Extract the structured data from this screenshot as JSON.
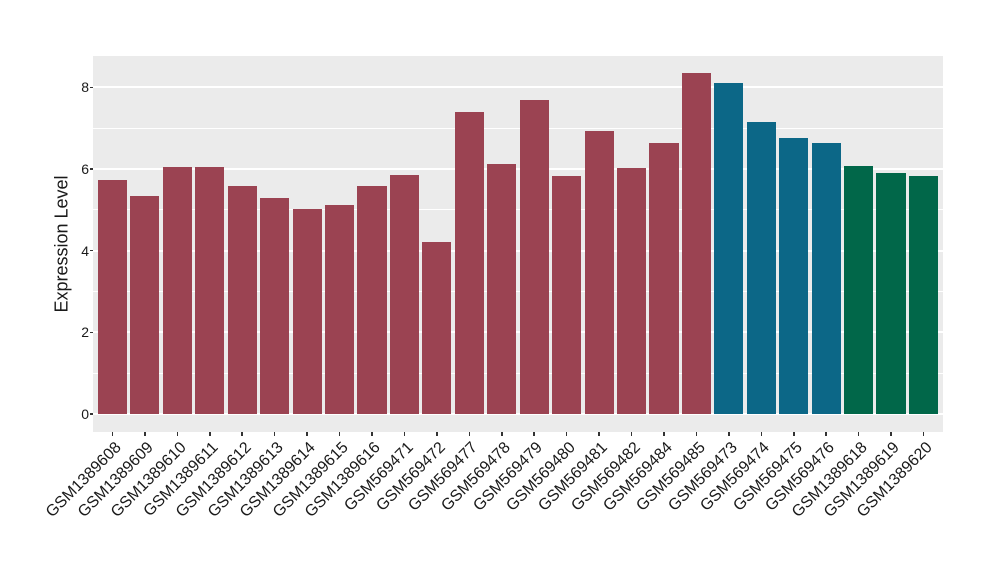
{
  "figure": {
    "title": "",
    "background_color": "#FFFFFF",
    "panel_background_color": "#EBEBEB",
    "gridline_color": "#FFFFFF",
    "tick_color": "#333333",
    "text_color": "#1A1A1A"
  },
  "chart_data": {
    "type": "bar",
    "title": "",
    "xlabel": "",
    "ylabel": "Expression Level",
    "legend": "none",
    "grid": "white major+minor gridlines on gray panel",
    "x_tick_rotation_deg": 45,
    "ylim": [
      -0.44,
      8.77
    ],
    "yticks": [
      0,
      2,
      4,
      6,
      8
    ],
    "yminor": [
      1,
      3,
      5,
      7
    ],
    "categories": [
      "GSM1389608",
      "GSM1389609",
      "GSM1389610",
      "GSM1389611",
      "GSM1389612",
      "GSM1389613",
      "GSM1389614",
      "GSM1389615",
      "GSM1389616",
      "GSM569471",
      "GSM569472",
      "GSM569477",
      "GSM569478",
      "GSM569479",
      "GSM569480",
      "GSM569481",
      "GSM569482",
      "GSM569484",
      "GSM569485",
      "GSM569473",
      "GSM569474",
      "GSM569475",
      "GSM569476",
      "GSM1389618",
      "GSM1389619",
      "GSM1389620"
    ],
    "values": [
      5.74,
      5.33,
      6.06,
      6.06,
      5.58,
      5.3,
      5.03,
      5.11,
      5.58,
      5.86,
      4.22,
      7.39,
      6.13,
      7.7,
      5.82,
      6.93,
      6.03,
      6.64,
      8.36,
      8.1,
      7.15,
      6.75,
      6.63,
      6.07,
      5.9,
      5.82
    ],
    "bar_color_keys": [
      "maroon",
      "maroon",
      "maroon",
      "maroon",
      "maroon",
      "maroon",
      "maroon",
      "maroon",
      "maroon",
      "maroon",
      "maroon",
      "maroon",
      "maroon",
      "maroon",
      "maroon",
      "maroon",
      "maroon",
      "maroon",
      "maroon",
      "teal",
      "teal",
      "teal",
      "teal",
      "green",
      "green",
      "green"
    ],
    "palette": {
      "maroon": "#9B4352",
      "teal": "#0C6787",
      "green": "#016749"
    }
  }
}
